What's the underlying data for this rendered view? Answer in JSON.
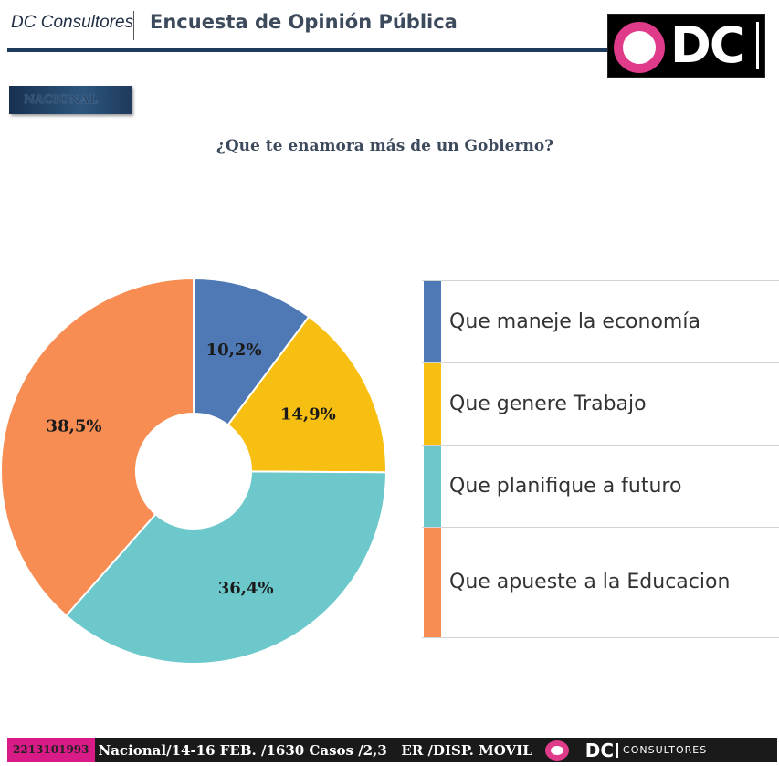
{
  "header": {
    "brand": "DC Consultores",
    "title": "Encuesta de Opinión Pública",
    "logo_text": "DC",
    "accent_color": "#e03b8b"
  },
  "region_badge": "NACIONAL",
  "chart_data": {
    "type": "pie",
    "title": "¿Que te enamora más de un Gobierno?",
    "categories": [
      "Que maneje la economía",
      "Que genere Trabajo",
      "Que planifique a futuro",
      "Que apueste a la Educacion"
    ],
    "values": [
      10.2,
      14.9,
      36.4,
      38.5
    ],
    "value_labels": [
      "10,2%",
      "14,9%",
      "36,4%",
      "38,5%"
    ],
    "colors": [
      "#4f79b5",
      "#f7bf12",
      "#6cc8cb",
      "#f78d52"
    ],
    "donut": true,
    "legend_position": "right"
  },
  "footer": {
    "phone": "2213101993",
    "info": "Nacional/14-16 FEB. /1630 Casos /2,3   ER /DISP. MOVIL",
    "logo_text": "DC",
    "consultores": "CONSULTORES"
  }
}
